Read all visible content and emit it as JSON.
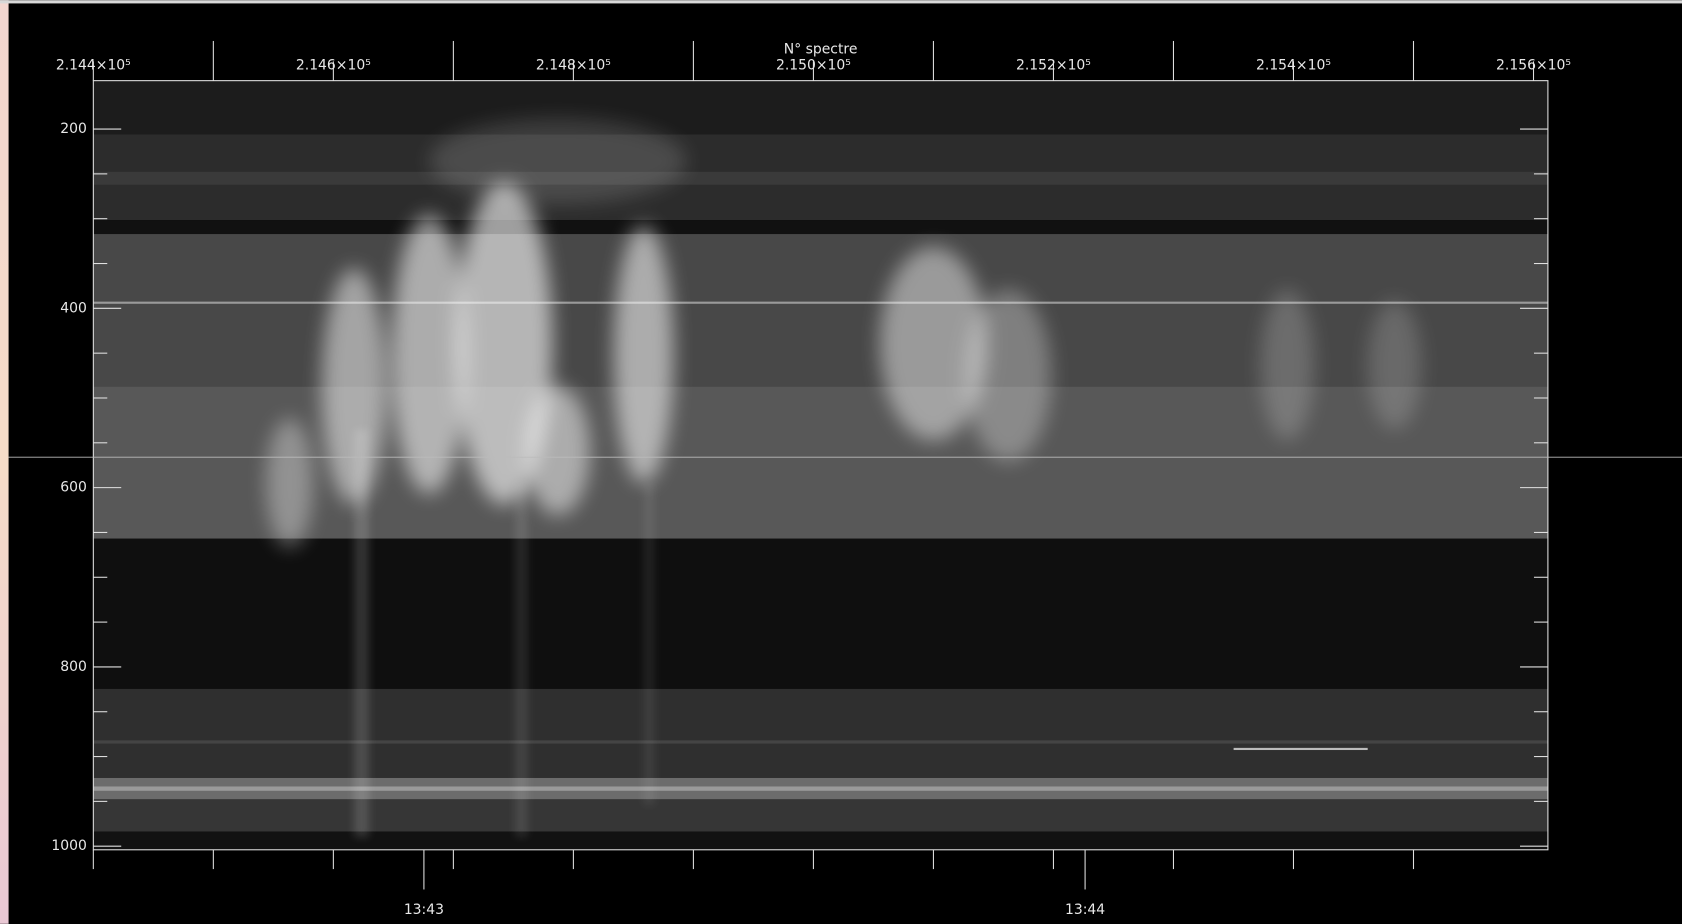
{
  "chart_data": {
    "type": "image",
    "x_label": "N° spectre",
    "xlim": [
      214400,
      215612
    ],
    "xticks": [
      {
        "value": 214400,
        "label": "2.144×10⁵"
      },
      {
        "value": 214600,
        "label": "2.146×10⁵"
      },
      {
        "value": 214800,
        "label": "2.148×10⁵"
      },
      {
        "value": 215000,
        "label": "2.150×10⁵"
      },
      {
        "value": 215200,
        "label": "2.152×10⁵"
      },
      {
        "value": 215400,
        "label": "2.154×10⁵"
      },
      {
        "value": 215600,
        "label": "2.156×10⁵"
      }
    ],
    "ylim": [
      1004,
      146
    ],
    "yticks": [
      200,
      400,
      600,
      800,
      1000
    ],
    "x2lim": [
      49350,
      49482
    ],
    "x2ticks": [
      {
        "value": 49380,
        "label": "13:43"
      },
      {
        "value": 49440,
        "label": "13:44"
      }
    ]
  }
}
